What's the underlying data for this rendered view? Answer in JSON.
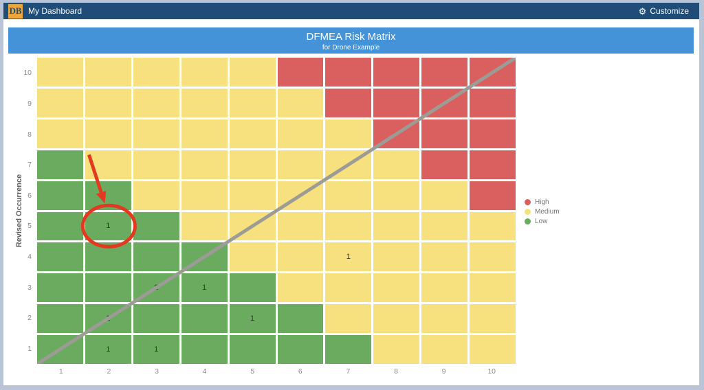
{
  "navbar": {
    "logo_text": "DB",
    "title": "My Dashboard",
    "gear_icon": "⚙",
    "customize_label": "Customize"
  },
  "widget": {
    "title": "DFMEA Risk Matrix",
    "subtitle": "for Drone Example"
  },
  "chart_data": {
    "type": "heatmap",
    "title": "DFMEA Risk Matrix",
    "subtitle": "for Drone Example",
    "xlabel": "",
    "ylabel": "Revised Occurrence",
    "x_ticks": [
      "1",
      "2",
      "3",
      "4",
      "5",
      "6",
      "7",
      "8",
      "9",
      "10"
    ],
    "y_ticks": [
      "10",
      "9",
      "8",
      "7",
      "6",
      "5",
      "4",
      "3",
      "2",
      "1"
    ],
    "x_range": [
      1,
      10
    ],
    "y_range": [
      1,
      10
    ],
    "grid": "white gaps between cells",
    "legend_position": "right",
    "colors": {
      "H": "#d9605f",
      "M": "#f6e17e",
      "L": "#6bab60"
    },
    "rows": [
      {
        "occurrence": 10,
        "levels": [
          "M",
          "M",
          "M",
          "M",
          "M",
          "H",
          "H",
          "H",
          "H",
          "H"
        ]
      },
      {
        "occurrence": 9,
        "levels": [
          "M",
          "M",
          "M",
          "M",
          "M",
          "M",
          "H",
          "H",
          "H",
          "H"
        ]
      },
      {
        "occurrence": 8,
        "levels": [
          "M",
          "M",
          "M",
          "M",
          "M",
          "M",
          "M",
          "H",
          "H",
          "H"
        ]
      },
      {
        "occurrence": 7,
        "levels": [
          "L",
          "M",
          "M",
          "M",
          "M",
          "M",
          "M",
          "M",
          "H",
          "H"
        ]
      },
      {
        "occurrence": 6,
        "levels": [
          "L",
          "L",
          "M",
          "M",
          "M",
          "M",
          "M",
          "M",
          "M",
          "H"
        ]
      },
      {
        "occurrence": 5,
        "levels": [
          "L",
          "L",
          "L",
          "M",
          "M",
          "M",
          "M",
          "M",
          "M",
          "M"
        ]
      },
      {
        "occurrence": 4,
        "levels": [
          "L",
          "L",
          "L",
          "L",
          "M",
          "M",
          "M",
          "M",
          "M",
          "M"
        ]
      },
      {
        "occurrence": 3,
        "levels": [
          "L",
          "L",
          "L",
          "L",
          "L",
          "M",
          "M",
          "M",
          "M",
          "M"
        ]
      },
      {
        "occurrence": 2,
        "levels": [
          "L",
          "L",
          "L",
          "L",
          "L",
          "L",
          "M",
          "M",
          "M",
          "M"
        ]
      },
      {
        "occurrence": 1,
        "levels": [
          "L",
          "L",
          "L",
          "L",
          "L",
          "L",
          "L",
          "M",
          "M",
          "M"
        ]
      }
    ],
    "points": [
      {
        "x": 2,
        "y": 5,
        "value": "1",
        "annotated": true
      },
      {
        "x": 7,
        "y": 4,
        "value": "1"
      },
      {
        "x": 3,
        "y": 3,
        "value": "2"
      },
      {
        "x": 4,
        "y": 3,
        "value": "1"
      },
      {
        "x": 2,
        "y": 2,
        "value": "1"
      },
      {
        "x": 5,
        "y": 2,
        "value": "1"
      },
      {
        "x": 2,
        "y": 1,
        "value": "1"
      },
      {
        "x": 3,
        "y": 1,
        "value": "1"
      }
    ],
    "diagonal_line": {
      "from": [
        0,
        0
      ],
      "to": [
        10,
        10
      ],
      "color": "#9c9b96"
    },
    "annotation": {
      "type": "circle-and-arrow",
      "target": {
        "x": 2,
        "y": 5
      },
      "color": "#e13a20"
    },
    "legend": [
      {
        "label": "High",
        "color": "#d9605f"
      },
      {
        "label": "Medium",
        "color": "#f6e17e"
      },
      {
        "label": "Low",
        "color": "#6bab60"
      }
    ]
  }
}
